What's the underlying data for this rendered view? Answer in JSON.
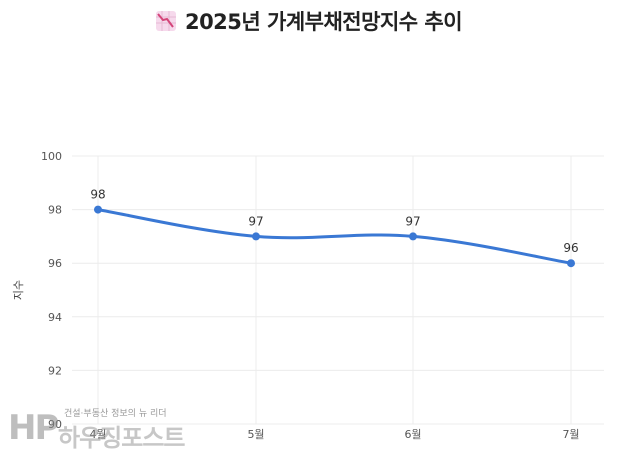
{
  "title": {
    "text": "2025년 가계부채전망지수 추이",
    "icon": "chart-decreasing-icon"
  },
  "watermark": {
    "tagline": "건설·부동산 정보의 뉴 리더",
    "logo": "HP",
    "name": "하우징포스트"
  },
  "colors": {
    "line": "#3a78d4",
    "point": "#3a78d4",
    "grid": "#ececec",
    "icon_bg": "#f6d9ec",
    "icon_line": "#d4457a"
  },
  "chart_data": {
    "type": "line",
    "title": "2025년 가계부채전망지수 추이",
    "xlabel": "",
    "ylabel": "지수",
    "categories": [
      "4월",
      "5월",
      "6월",
      "7월"
    ],
    "series": [
      {
        "values": [
          98,
          97,
          97,
          96
        ]
      }
    ],
    "data_labels": [
      "98",
      "97",
      "97",
      "96"
    ],
    "yticks": [
      90,
      92,
      94,
      96,
      98,
      100
    ],
    "ylim": [
      90,
      100
    ],
    "grid": true,
    "smooth": true
  }
}
